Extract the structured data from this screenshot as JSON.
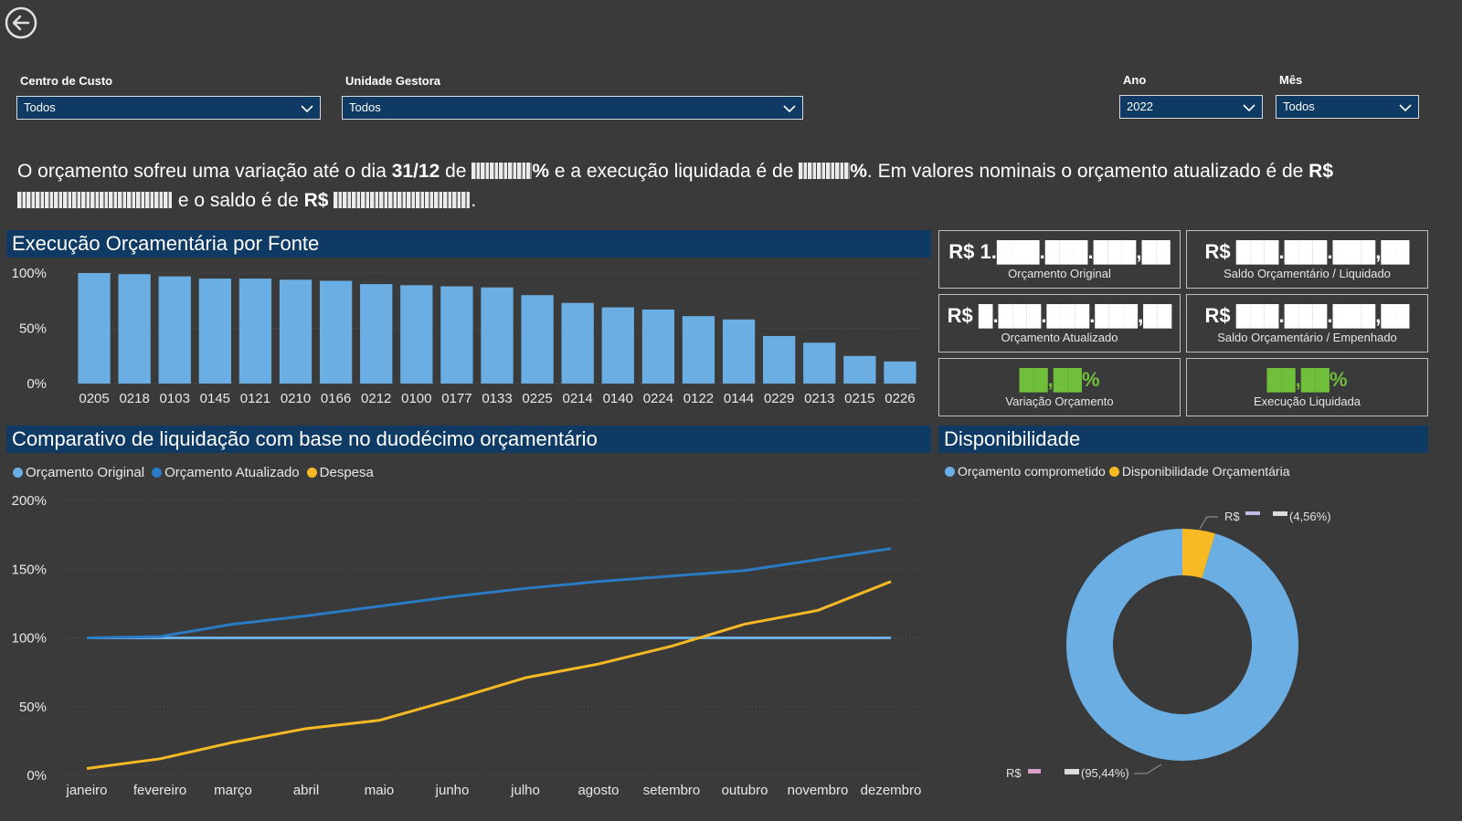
{
  "filters": {
    "centro_custo": {
      "label": "Centro de Custo",
      "value": "Todos"
    },
    "unidade_gestora": {
      "label": "Unidade Gestora",
      "value": "Todos"
    },
    "ano": {
      "label": "Ano",
      "value": "2022"
    },
    "mes": {
      "label": "Mês",
      "value": "Todos"
    }
  },
  "summary": {
    "p1": "O orçamento sofreu uma variação até o dia ",
    "date": "31/12",
    "p2": " de ",
    "p3": " e a execução liquidada é de ",
    "p4": ". Em valores nominais o orçamento atualizado é de ",
    "currency": "R$",
    "p5": " e o saldo é de ",
    "p6": "."
  },
  "sections": {
    "execucao": "Execução Orçamentária por Fonte",
    "comparativo": "Comparativo de liquidação com base no duodécimo orçamentário",
    "disponibilidade": "Disponibilidade"
  },
  "kpis": {
    "orcamento_original": {
      "value": "R$ 1.███.███.███,██",
      "label": "Orçamento Original"
    },
    "saldo_liquidado": {
      "value": "R$ ███.███.███,██",
      "label": "Saldo Orçamentário / Liquidado"
    },
    "orcamento_atualizado": {
      "value": "R$ █.███.███.███,██",
      "label": "Orçamento Atualizado"
    },
    "saldo_empenhado": {
      "value": "R$ ███.███.███,██",
      "label": "Saldo Orçamentário / Empenhado"
    },
    "variacao": {
      "value": "██,██%",
      "label": "Variação Orçamento"
    },
    "execucao_liquidada": {
      "value": "██,██%",
      "label": "Execução Liquidada"
    }
  },
  "colors": {
    "bar": "#6aaee3",
    "original": "#6aaee3",
    "atualizado": "#2b7bc4",
    "despesa": "#f7b924",
    "header": "#0f3a63",
    "background": "#3a3a3a"
  },
  "chart_data": [
    {
      "type": "bar",
      "categories": [
        "0205",
        "0218",
        "0103",
        "0145",
        "0121",
        "0210",
        "0166",
        "0212",
        "0100",
        "0177",
        "0133",
        "0225",
        "0214",
        "0140",
        "0224",
        "0122",
        "0144",
        "0229",
        "0213",
        "0215",
        "0226"
      ],
      "values": [
        100,
        99,
        97,
        95,
        95,
        94,
        93,
        90,
        89,
        88,
        87,
        80,
        73,
        69,
        67,
        61,
        58,
        43,
        37,
        25,
        20
      ],
      "y_ticks": [
        "100%",
        "50%",
        "0%"
      ],
      "ylim": [
        0,
        100
      ]
    },
    {
      "type": "line",
      "categories": [
        "janeiro",
        "fevereiro",
        "março",
        "abril",
        "maio",
        "junho",
        "julho",
        "agosto",
        "setembro",
        "outubro",
        "novembro",
        "dezembro"
      ],
      "series": [
        {
          "name": "Orçamento Original",
          "values": [
            100,
            100,
            100,
            100,
            100,
            100,
            100,
            100,
            100,
            100,
            100,
            100
          ]
        },
        {
          "name": "Orçamento Atualizado",
          "values": [
            100,
            101,
            110,
            116,
            123,
            130,
            136,
            141,
            145,
            149,
            157,
            165
          ]
        },
        {
          "name": "Despesa",
          "values": [
            5,
            12,
            24,
            34,
            40,
            55,
            71,
            81,
            94,
            110,
            120,
            141
          ]
        }
      ],
      "y_ticks": [
        "200%",
        "150%",
        "100%",
        "50%",
        "0%"
      ],
      "ylim": [
        0,
        200
      ]
    },
    {
      "type": "pie",
      "legend": [
        "Orçamento comprometido",
        "Disponibilidade Orçamentária"
      ],
      "slices": [
        {
          "name": "Orçamento comprometido",
          "value": 95.44,
          "label": "(95,44%)",
          "prefix": "R$"
        },
        {
          "name": "Disponibilidade Orçamentária",
          "value": 4.56,
          "label": "(4,56%)",
          "prefix": "R$"
        }
      ]
    }
  ]
}
